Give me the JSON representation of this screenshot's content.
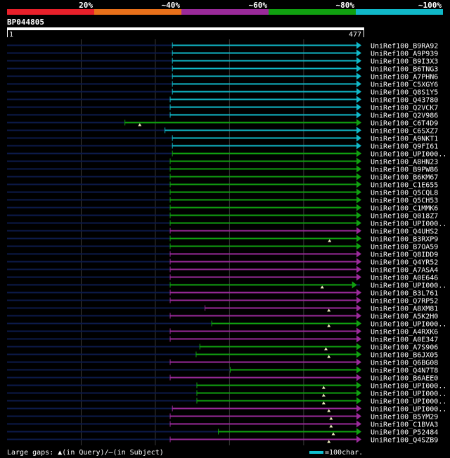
{
  "chart_data": {
    "type": "alignment-overview",
    "query_id": "BP044805",
    "query_start": "1",
    "query_end": "477",
    "query_length": 477,
    "identity_legend": [
      {
        "label": "20%",
        "color": "#e8202a"
      },
      {
        "label": "~40%",
        "color": "#e8701a"
      },
      {
        "label": "~60%",
        "color": "#9a2a9a"
      },
      {
        "label": "~80%",
        "color": "#10a010"
      },
      {
        "label": "~100%",
        "color": "#10b8c8"
      }
    ],
    "hits": [
      {
        "name": "UniRef100_B9RA92",
        "start": 224,
        "end": 477,
        "identity": "100",
        "gap": null
      },
      {
        "name": "UniRef100_A9P939",
        "start": 224,
        "end": 477,
        "identity": "100",
        "gap": null
      },
      {
        "name": "UniRef100_B9I3X3",
        "start": 224,
        "end": 477,
        "identity": "100",
        "gap": null
      },
      {
        "name": "UniRef100_B6TNG3",
        "start": 224,
        "end": 477,
        "identity": "100",
        "gap": null
      },
      {
        "name": "UniRef100_A7PHN6",
        "start": 224,
        "end": 477,
        "identity": "100",
        "gap": null
      },
      {
        "name": "UniRef100_C5XGY6",
        "start": 224,
        "end": 477,
        "identity": "100",
        "gap": null
      },
      {
        "name": "UniRef100_Q8S1Y5",
        "start": 224,
        "end": 477,
        "identity": "100",
        "gap": null
      },
      {
        "name": "UniRef100_Q43780",
        "start": 221,
        "end": 477,
        "identity": "100",
        "gap": null
      },
      {
        "name": "UniRef100_Q2VCK7",
        "start": 221,
        "end": 477,
        "identity": "100",
        "gap": null
      },
      {
        "name": "UniRef100_Q2V986",
        "start": 221,
        "end": 477,
        "identity": "100",
        "gap": null
      },
      {
        "name": "UniRef100_C6T4D9",
        "start": 160,
        "end": 477,
        "identity": "80",
        "gap": 180
      },
      {
        "name": "UniRef100_C6SXZ7",
        "start": 214,
        "end": 477,
        "identity": "100",
        "gap": null
      },
      {
        "name": "UniRef100_A9NKT1",
        "start": 224,
        "end": 477,
        "identity": "100",
        "gap": null
      },
      {
        "name": "UniRef100_Q9FI61",
        "start": 224,
        "end": 477,
        "identity": "100",
        "gap": null
      },
      {
        "name": "UniRef100_UPI000..",
        "start": 224,
        "end": 477,
        "identity": "80",
        "gap": null
      },
      {
        "name": "UniRef100_A8HN23",
        "start": 221,
        "end": 477,
        "identity": "80",
        "gap": null
      },
      {
        "name": "UniRef100_B9PW86",
        "start": 221,
        "end": 477,
        "identity": "80",
        "gap": null
      },
      {
        "name": "UniRef100_B6KM67",
        "start": 221,
        "end": 477,
        "identity": "80",
        "gap": null
      },
      {
        "name": "UniRef100_C1E655",
        "start": 221,
        "end": 477,
        "identity": "80",
        "gap": null
      },
      {
        "name": "UniRef100_Q5CQL8",
        "start": 221,
        "end": 477,
        "identity": "80",
        "gap": null
      },
      {
        "name": "UniRef100_Q5CH53",
        "start": 221,
        "end": 477,
        "identity": "80",
        "gap": null
      },
      {
        "name": "UniRef100_C1MMK6",
        "start": 221,
        "end": 477,
        "identity": "80",
        "gap": null
      },
      {
        "name": "UniRef100_Q018Z7",
        "start": 221,
        "end": 477,
        "identity": "80",
        "gap": null
      },
      {
        "name": "UniRef100_UPI000..",
        "start": 221,
        "end": 477,
        "identity": "80",
        "gap": null
      },
      {
        "name": "UniRef100_Q4UHS2",
        "start": 221,
        "end": 477,
        "identity": "60",
        "gap": null
      },
      {
        "name": "UniRef100_B3RXP9",
        "start": 221,
        "end": 477,
        "identity": "80",
        "gap": 436
      },
      {
        "name": "UniRef100_B7OA59",
        "start": 221,
        "end": 477,
        "identity": "80",
        "gap": null
      },
      {
        "name": "UniRef100_Q8IDD9",
        "start": 221,
        "end": 477,
        "identity": "60",
        "gap": null
      },
      {
        "name": "UniRef100_Q4YR52",
        "start": 221,
        "end": 477,
        "identity": "60",
        "gap": null
      },
      {
        "name": "UniRef100_A7ASA4",
        "start": 221,
        "end": 477,
        "identity": "60",
        "gap": null
      },
      {
        "name": "UniRef100_A0E646",
        "start": 221,
        "end": 477,
        "identity": "60",
        "gap": null
      },
      {
        "name": "UniRef100_UPI000..",
        "start": 221,
        "end": 471,
        "identity": "80",
        "gap": 426
      },
      {
        "name": "UniRef100_B3L761",
        "start": 221,
        "end": 477,
        "identity": "60",
        "gap": null
      },
      {
        "name": "UniRef100_Q7RP52",
        "start": 221,
        "end": 477,
        "identity": "60",
        "gap": null
      },
      {
        "name": "UniRef100_A8XM81",
        "start": 268,
        "end": 477,
        "identity": "60",
        "gap": 435
      },
      {
        "name": "UniRef100_A5K2H0",
        "start": 221,
        "end": 477,
        "identity": "60",
        "gap": null
      },
      {
        "name": "UniRef100_UPI000..",
        "start": 277,
        "end": 477,
        "identity": "80",
        "gap": 435
      },
      {
        "name": "UniRef100_A4RXK6",
        "start": 221,
        "end": 477,
        "identity": "60",
        "gap": null
      },
      {
        "name": "UniRef100_A0E347",
        "start": 221,
        "end": 477,
        "identity": "60",
        "gap": null
      },
      {
        "name": "UniRef100_A7S906",
        "start": 261,
        "end": 477,
        "identity": "80",
        "gap": 431
      },
      {
        "name": "UniRef100_B6JX05",
        "start": 256,
        "end": 477,
        "identity": "80",
        "gap": 435
      },
      {
        "name": "UniRef100_Q6BG08",
        "start": 221,
        "end": 477,
        "identity": "60",
        "gap": null
      },
      {
        "name": "UniRef100_Q4N7T8",
        "start": 302,
        "end": 477,
        "identity": "80",
        "gap": null
      },
      {
        "name": "UniRef100_B6AEE0",
        "start": 221,
        "end": 477,
        "identity": "60",
        "gap": null
      },
      {
        "name": "UniRef100_UPI000..",
        "start": 257,
        "end": 477,
        "identity": "80",
        "gap": 428
      },
      {
        "name": "UniRef100_UPI000..",
        "start": 257,
        "end": 477,
        "identity": "80",
        "gap": 428
      },
      {
        "name": "UniRef100_UPI000..",
        "start": 257,
        "end": 477,
        "identity": "80",
        "gap": 428
      },
      {
        "name": "UniRef100_UPI000..",
        "start": 224,
        "end": 477,
        "identity": "60",
        "gap": 435
      },
      {
        "name": "UniRef100_B5YM29",
        "start": 221,
        "end": 477,
        "identity": "60",
        "gap": 438
      },
      {
        "name": "UniRef100_C1BVA3",
        "start": 221,
        "end": 477,
        "identity": "60",
        "gap": 438
      },
      {
        "name": "UniRef100_P52484",
        "start": 286,
        "end": 477,
        "identity": "80",
        "gap": 441
      },
      {
        "name": "UniRef100_Q4SZB9",
        "start": 221,
        "end": 477,
        "identity": "60",
        "gap": 435
      }
    ],
    "footer": {
      "gaps_text": "Large gaps: ",
      "gap_query": "(in Query)/",
      "gap_subject": "(in Subject)",
      "scale_text": "=100char."
    }
  }
}
